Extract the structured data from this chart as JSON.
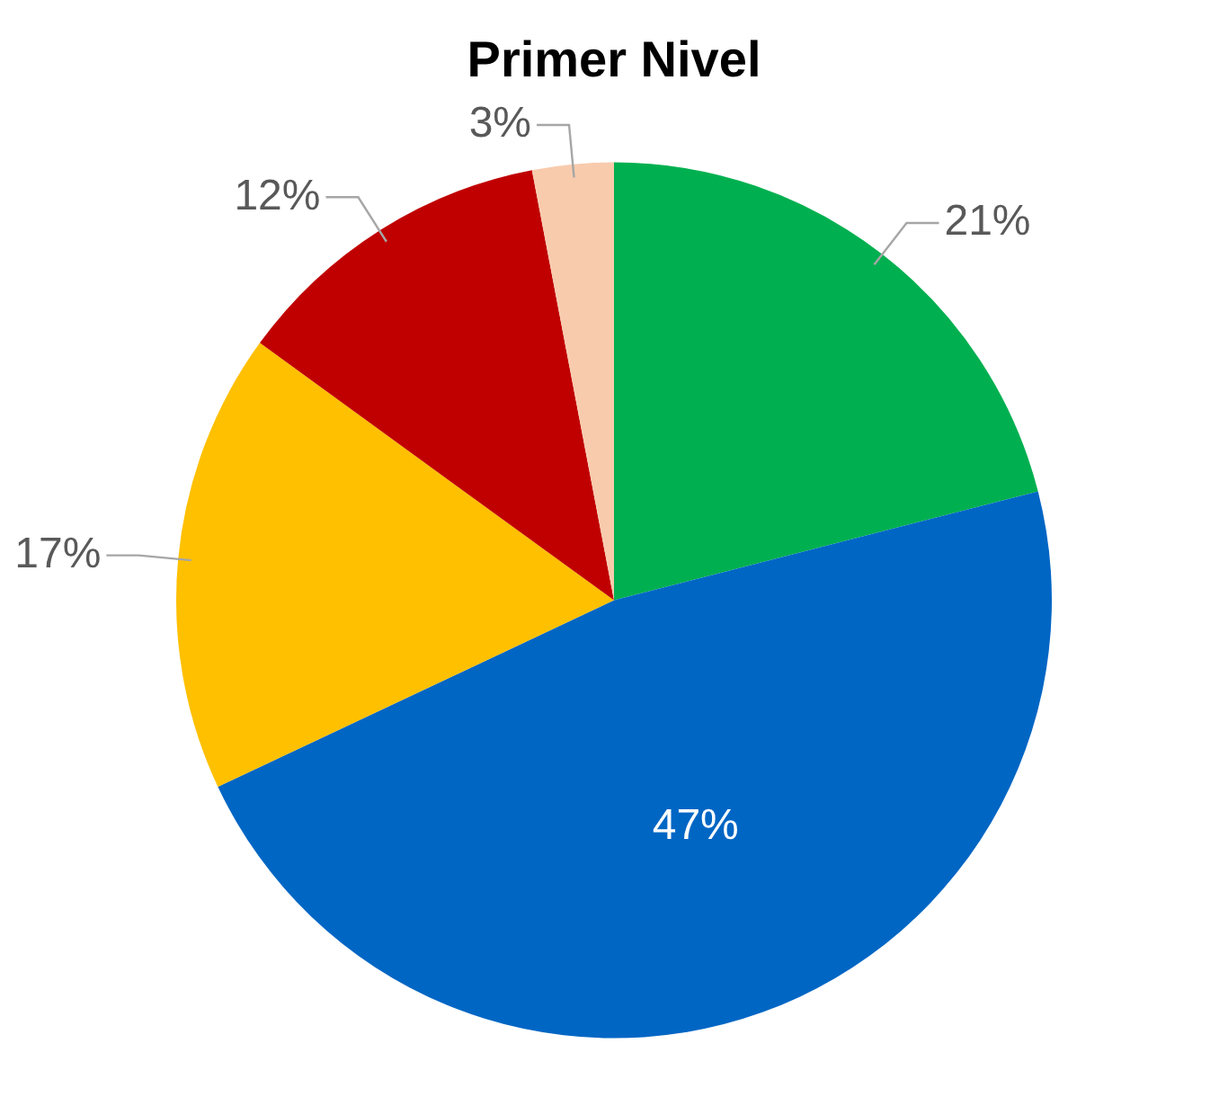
{
  "chart_data": {
    "type": "pie",
    "title": "Primer Nivel",
    "categories": [
      null,
      null,
      null,
      null,
      null
    ],
    "values": [
      21,
      47,
      17,
      12,
      3
    ],
    "value_labels": [
      "21%",
      "47%",
      "17%",
      "12%",
      "3%"
    ],
    "colors": [
      "#00b050",
      "#0066c4",
      "#ffc000",
      "#c00000",
      "#f8cbad"
    ],
    "legend": false
  }
}
